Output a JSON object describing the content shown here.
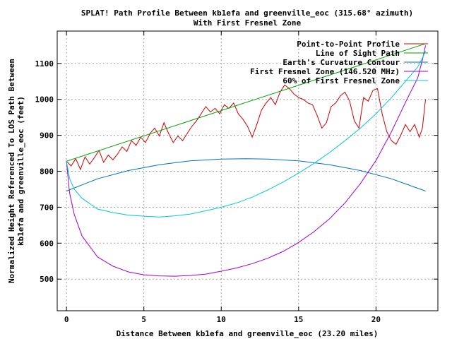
{
  "chart_data": {
    "type": "line",
    "title": "SPLAT! Path Profile Between kb1efa and greenville_eoc (315.68° azimuth)",
    "subtitle": "With First Fresnel Zone",
    "xlabel": "Distance Between kb1efa and greenville_eoc (23.20 miles)",
    "ylabel_line1": "Normalized Height Referenced To LOS Path Between",
    "ylabel_line2": "kb1efa and greenville_eoc (feet)",
    "xlim": [
      -0.6,
      24.0
    ],
    "ylim": [
      412,
      1190
    ],
    "x_ticks": [
      0,
      5,
      10,
      15,
      20
    ],
    "x_tick_labels": [
      "0",
      "5",
      "10",
      "15",
      "20"
    ],
    "y_ticks": [
      500,
      600,
      700,
      800,
      900,
      1000,
      1100
    ],
    "y_tick_labels": [
      "500",
      "600",
      "700",
      "800",
      "900",
      "1000",
      "1100"
    ],
    "grid": true,
    "legend_position": "top-right",
    "series": [
      {
        "name": "Point-to-Point Profile",
        "color": "#cc0000",
        "x": [
          0,
          0.3,
          0.6,
          0.9,
          1.2,
          1.5,
          1.8,
          2.1,
          2.4,
          2.7,
          3.0,
          3.3,
          3.6,
          3.9,
          4.2,
          4.5,
          4.8,
          5.1,
          5.4,
          5.7,
          6.0,
          6.3,
          6.6,
          6.9,
          7.2,
          7.5,
          7.8,
          8.1,
          8.4,
          8.7,
          9.0,
          9.3,
          9.6,
          9.9,
          10.2,
          10.5,
          10.8,
          11.1,
          11.4,
          11.7,
          12.0,
          12.3,
          12.6,
          12.9,
          13.2,
          13.5,
          13.8,
          14.1,
          14.4,
          14.7,
          15.0,
          15.3,
          15.6,
          15.9,
          16.2,
          16.5,
          16.8,
          17.1,
          17.4,
          17.7,
          18.0,
          18.3,
          18.6,
          18.9,
          19.2,
          19.5,
          19.8,
          20.1,
          20.4,
          20.7,
          21.0,
          21.3,
          21.6,
          21.9,
          22.2,
          22.5,
          22.8,
          23.0,
          23.1,
          23.2
        ],
        "y": [
          828,
          815,
          835,
          805,
          840,
          820,
          838,
          858,
          825,
          845,
          832,
          848,
          868,
          855,
          885,
          872,
          895,
          880,
          905,
          920,
          898,
          935,
          905,
          880,
          898,
          885,
          905,
          925,
          940,
          960,
          980,
          965,
          975,
          960,
          985,
          975,
          990,
          960,
          945,
          925,
          895,
          930,
          970,
          990,
          1005,
          985,
          1020,
          1040,
          1030,
          1015,
          1005,
          1000,
          990,
          985,
          955,
          920,
          935,
          980,
          990,
          1010,
          1020,
          995,
          940,
          920,
          1005,
          995,
          1025,
          1030,
          960,
          910,
          885,
          875,
          900,
          930,
          910,
          930,
          895,
          920,
          960,
          1000
        ]
      },
      {
        "name": "Line of Sight Path",
        "color": "#00a000",
        "x": [
          0,
          23.2
        ],
        "y": [
          828,
          1155
        ]
      },
      {
        "name": "Earth's Curvature Contour",
        "color": "#0070c0",
        "x": [
          0,
          2,
          4,
          6,
          8,
          10,
          11.6,
          13,
          15,
          17,
          19,
          21,
          23.2
        ],
        "y": [
          745,
          779,
          802,
          818,
          829,
          834,
          835,
          834,
          829,
          818,
          802,
          779,
          745
        ]
      },
      {
        "name": "First Fresnel Zone (146.520 MHz)",
        "color": "#a000d0",
        "x": [
          0,
          0.2,
          0.5,
          1,
          2,
          3,
          4,
          5,
          6,
          7,
          8,
          9,
          10,
          11,
          12,
          13,
          14,
          15,
          16,
          17,
          18,
          19,
          20,
          21,
          22,
          22.7,
          23.0,
          23.2
        ],
        "y": [
          828,
          740,
          680,
          620,
          562,
          536,
          520,
          512,
          509,
          508,
          510,
          514,
          522,
          531,
          543,
          558,
          577,
          602,
          632,
          668,
          712,
          766,
          830,
          910,
          1000,
          1060,
          1110,
          1150
        ]
      },
      {
        "name": "60% of First Fresnel Zone",
        "color": "#00c8d8",
        "x": [
          0,
          0.2,
          0.5,
          1,
          2,
          3,
          4,
          5,
          6,
          7,
          8,
          9,
          10,
          11,
          12,
          13,
          14,
          15,
          16,
          17,
          18,
          19,
          20,
          21,
          22,
          22.7,
          23.0,
          23.2
        ],
        "y": [
          828,
          780,
          750,
          725,
          695,
          685,
          678,
          675,
          673,
          676,
          681,
          690,
          700,
          712,
          728,
          748,
          770,
          795,
          822,
          852,
          885,
          920,
          960,
          1005,
          1055,
          1090,
          1115,
          1135
        ]
      }
    ]
  }
}
